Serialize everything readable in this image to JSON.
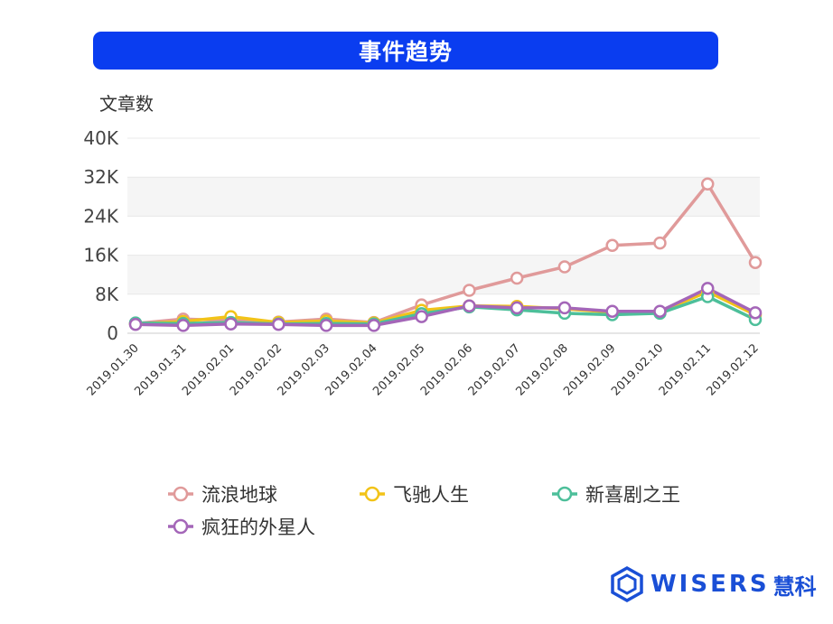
{
  "chart_data": {
    "type": "line",
    "title": "事件趋势",
    "ylabel": "文章数",
    "xlabel": "",
    "ylim": [
      0,
      40000
    ],
    "yticks": [
      0,
      8000,
      16000,
      24000,
      32000,
      40000
    ],
    "ytick_labels": [
      "0",
      "8K",
      "16K",
      "24K",
      "32K",
      "40K"
    ],
    "categories": [
      "2019.01.30",
      "2019.01.31",
      "2019.02.01",
      "2019.02.02",
      "2019.02.03",
      "2019.02.04",
      "2019.02.05",
      "2019.02.06",
      "2019.02.07",
      "2019.02.08",
      "2019.02.09",
      "2019.02.10",
      "2019.02.11",
      "2019.02.12"
    ],
    "legend_position": "bottom",
    "series": [
      {
        "name": "流浪地球",
        "color": "#e09a9a",
        "values": [
          2000,
          2900,
          2600,
          2300,
          2900,
          2200,
          5800,
          8800,
          11300,
          13600,
          18000,
          18500,
          30600,
          14500
        ]
      },
      {
        "name": "飞驰人生",
        "color": "#f2c318",
        "values": [
          1900,
          2400,
          3400,
          2200,
          2500,
          2100,
          4700,
          5600,
          5500,
          5000,
          4300,
          4400,
          8500,
          3800
        ]
      },
      {
        "name": "新喜剧之王",
        "color": "#4dbf9a",
        "values": [
          2100,
          2000,
          2200,
          1900,
          2000,
          1900,
          4000,
          5400,
          4800,
          4100,
          3800,
          4100,
          7500,
          2800
        ]
      },
      {
        "name": "疯狂的外星人",
        "color": "#a466b8",
        "values": [
          1800,
          1600,
          1900,
          1800,
          1600,
          1600,
          3400,
          5600,
          5200,
          5200,
          4500,
          4500,
          9200,
          4200
        ]
      }
    ]
  },
  "logo": {
    "text": "WISERS",
    "cn": "慧科"
  }
}
